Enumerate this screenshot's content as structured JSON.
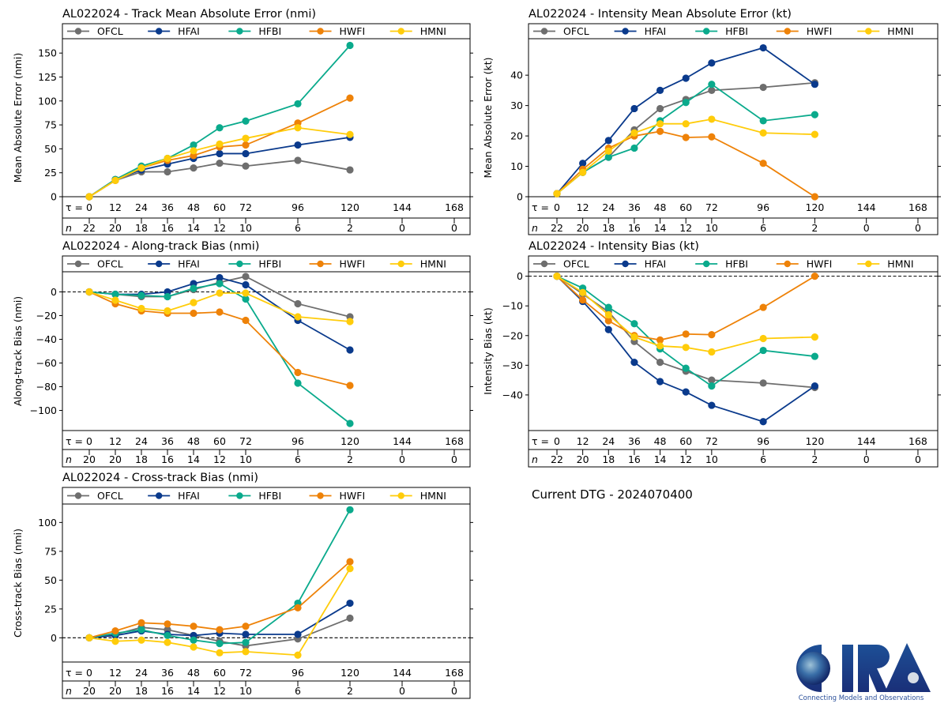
{
  "chart_data": [
    {
      "type": "line",
      "title": "AL022024 - Track Mean Absolute Error (nmi)",
      "ylabel": "Mean Absolute Error (nmi)",
      "ylim": [
        0,
        165
      ],
      "yticks": [
        0,
        25,
        50,
        75,
        100,
        125,
        150
      ],
      "zero_line": false,
      "x": [
        0,
        12,
        24,
        36,
        48,
        60,
        72,
        96,
        120
      ],
      "tau_ticks": [
        0,
        12,
        24,
        36,
        48,
        60,
        72,
        96,
        120,
        144,
        168
      ],
      "n_counts": [
        22,
        20,
        18,
        16,
        14,
        12,
        10,
        6,
        2,
        0,
        0
      ],
      "series": [
        {
          "name": "OFCL",
          "values": [
            0,
            17,
            26,
            26,
            30,
            35,
            32,
            38,
            28
          ]
        },
        {
          "name": "HFAI",
          "values": [
            0,
            18,
            28,
            34,
            40,
            45,
            45,
            54,
            62
          ]
        },
        {
          "name": "HFBI",
          "values": [
            0,
            18,
            32,
            40,
            54,
            72,
            79,
            97,
            158
          ]
        },
        {
          "name": "HWFI",
          "values": [
            0,
            17,
            30,
            38,
            43,
            52,
            54,
            77,
            103
          ]
        },
        {
          "name": "HMNI",
          "values": [
            0,
            17,
            30,
            40,
            48,
            55,
            61,
            72,
            65
          ]
        }
      ]
    },
    {
      "type": "line",
      "title": "AL022024 - Intensity Mean Absolute Error (kt)",
      "ylabel": "Mean Absolute Error (kt)",
      "ylim": [
        0,
        52
      ],
      "yticks": [
        0,
        10,
        20,
        30,
        40
      ],
      "zero_line": false,
      "x": [
        0,
        12,
        24,
        36,
        48,
        60,
        72,
        96,
        120
      ],
      "tau_ticks": [
        0,
        12,
        24,
        36,
        48,
        60,
        72,
        96,
        120,
        144,
        168
      ],
      "n_counts": [
        22,
        20,
        18,
        16,
        14,
        12,
        10,
        6,
        2,
        0,
        0
      ],
      "series": [
        {
          "name": "OFCL",
          "values": [
            1,
            8,
            13,
            22,
            29,
            32,
            35,
            36,
            37.5
          ]
        },
        {
          "name": "HFAI",
          "values": [
            1,
            11,
            18.5,
            29,
            35,
            39,
            44,
            49,
            37
          ]
        },
        {
          "name": "HFBI",
          "values": [
            1,
            8,
            13,
            16,
            25,
            31,
            37,
            25,
            27
          ]
        },
        {
          "name": "HWFI",
          "values": [
            1,
            9,
            16,
            20,
            21.5,
            19.5,
            19.7,
            11,
            0
          ]
        },
        {
          "name": "HMNI",
          "values": [
            1,
            8,
            15,
            21,
            24,
            24,
            25.5,
            21,
            20.5
          ]
        }
      ]
    },
    {
      "type": "line",
      "title": "AL022024 - Along-track Bias (nmi)",
      "ylabel": "Along-track Bias (nmi)",
      "ylim": [
        -117,
        17
      ],
      "yticks": [
        -100,
        -80,
        -60,
        -40,
        -20,
        0
      ],
      "zero_line": true,
      "x": [
        0,
        12,
        24,
        36,
        48,
        60,
        72,
        96,
        120
      ],
      "tau_ticks": [
        0,
        12,
        24,
        36,
        48,
        60,
        72,
        96,
        120,
        144,
        168
      ],
      "n_counts": [
        20,
        20,
        18,
        16,
        14,
        12,
        10,
        6,
        2,
        0,
        0
      ],
      "series": [
        {
          "name": "OFCL",
          "values": [
            0,
            -2,
            -4,
            -4,
            2,
            8,
            13,
            -10,
            -21
          ]
        },
        {
          "name": "HFAI",
          "values": [
            0,
            -2,
            -2,
            0,
            7,
            12,
            6,
            -24,
            -49
          ]
        },
        {
          "name": "HFBI",
          "values": [
            0,
            -2,
            -3,
            -4,
            3,
            7,
            -6,
            -77,
            -111
          ]
        },
        {
          "name": "HWFI",
          "values": [
            0,
            -10,
            -16,
            -18,
            -18,
            -17,
            -24,
            -68,
            -79
          ]
        },
        {
          "name": "HMNI",
          "values": [
            0,
            -7,
            -14,
            -16,
            -9,
            -1,
            -1,
            -21,
            -25
          ]
        }
      ]
    },
    {
      "type": "line",
      "title": "AL022024 - Intensity Bias (kt)",
      "ylabel": "Intensity Bias (kt)",
      "ylim": [
        -52,
        1.5
      ],
      "yticks": [
        -40,
        -30,
        -20,
        -10,
        0
      ],
      "zero_line": true,
      "x": [
        0,
        12,
        24,
        36,
        48,
        60,
        72,
        96,
        120
      ],
      "tau_ticks": [
        0,
        12,
        24,
        36,
        48,
        60,
        72,
        96,
        120,
        144,
        168
      ],
      "n_counts": [
        22,
        20,
        18,
        16,
        14,
        12,
        10,
        6,
        2,
        0,
        0
      ],
      "series": [
        {
          "name": "OFCL",
          "values": [
            0,
            -6,
            -12,
            -22,
            -29,
            -32,
            -35,
            -36,
            -37.5
          ]
        },
        {
          "name": "HFAI",
          "values": [
            0,
            -8.5,
            -18,
            -29,
            -35.5,
            -39,
            -43.5,
            -49,
            -37
          ]
        },
        {
          "name": "HFBI",
          "values": [
            0,
            -4,
            -10.5,
            -16,
            -24.5,
            -31,
            -37,
            -25,
            -27
          ]
        },
        {
          "name": "HWFI",
          "values": [
            0,
            -8,
            -15,
            -20,
            -21.5,
            -19.5,
            -19.7,
            -10.5,
            0
          ]
        },
        {
          "name": "HMNI",
          "values": [
            0,
            -5.5,
            -13,
            -20.5,
            -23.5,
            -24,
            -25.5,
            -21,
            -20.5
          ]
        }
      ]
    },
    {
      "type": "line",
      "title": "AL022024 - Cross-track Bias (nmi)",
      "ylabel": "Cross-track Bias (nmi)",
      "ylim": [
        -21,
        116
      ],
      "yticks": [
        0,
        25,
        50,
        75,
        100
      ],
      "zero_line": true,
      "x": [
        0,
        12,
        24,
        36,
        48,
        60,
        72,
        96,
        120
      ],
      "tau_ticks": [
        0,
        12,
        24,
        36,
        48,
        60,
        72,
        96,
        120,
        144,
        168
      ],
      "n_counts": [
        20,
        20,
        18,
        16,
        14,
        12,
        10,
        6,
        2,
        0,
        0
      ],
      "series": [
        {
          "name": "OFCL",
          "values": [
            0,
            3,
            9,
            7,
            2,
            -3,
            -7,
            -1,
            17
          ]
        },
        {
          "name": "HFAI",
          "values": [
            0,
            2,
            6,
            3,
            2,
            4,
            3,
            3,
            30
          ]
        },
        {
          "name": "HFBI",
          "values": [
            0,
            4,
            7,
            2,
            -2,
            -5,
            -4,
            30,
            111
          ]
        },
        {
          "name": "HWFI",
          "values": [
            0,
            6,
            13,
            12,
            10,
            7,
            10,
            26,
            66
          ]
        },
        {
          "name": "HMNI",
          "values": [
            0,
            -3,
            -2,
            -4,
            -8,
            -13,
            -12,
            -15,
            60
          ]
        }
      ]
    }
  ],
  "series_colors": {
    "OFCL": "#6e6e6e",
    "HFAI": "#0a3a8c",
    "HFBI": "#0aaa8c",
    "HWFI": "#ee8208",
    "HMNI": "#ffcc0a"
  },
  "tau_label": "τ = ",
  "n_label": "n",
  "dtg_text": "Current DTG - 2024070400",
  "logo": {
    "text": "CIRA",
    "tagline": "Connecting Models and Observations"
  }
}
